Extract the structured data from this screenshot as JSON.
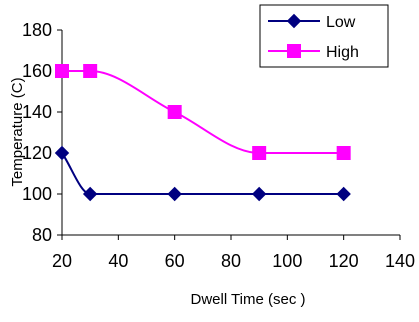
{
  "chart_data": {
    "type": "line",
    "title": "",
    "xlabel": "Dwell Time (sec )",
    "ylabel": "Temperature (C)",
    "xlim": [
      20,
      140
    ],
    "ylim": [
      80,
      180
    ],
    "xticks": [
      20,
      40,
      60,
      80,
      100,
      120,
      140
    ],
    "yticks": [
      80,
      100,
      120,
      140,
      160,
      180
    ],
    "xtick_labels": [
      "20",
      "40",
      "60",
      "80",
      "100",
      "120",
      "140"
    ],
    "ytick_labels": [
      "80",
      "100",
      "120",
      "140",
      "160",
      "180"
    ],
    "grid": false,
    "legend_position": "top-right",
    "smoothed": true,
    "series": [
      {
        "name": "Low",
        "color": "#000080",
        "marker": "diamond",
        "x": [
          20,
          30,
          60,
          90,
          120
        ],
        "y": [
          120,
          100,
          100,
          100,
          100
        ]
      },
      {
        "name": "High",
        "color": "#ff00ff",
        "marker": "square",
        "x": [
          20,
          30,
          60,
          90,
          120
        ],
        "y": [
          160,
          160,
          140,
          120,
          120
        ]
      }
    ]
  }
}
